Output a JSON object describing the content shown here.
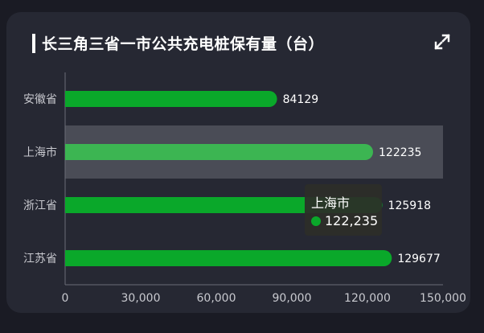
{
  "title": "长三角三省一市公共充电桩保有量（台）",
  "icons": {
    "expand": "expand-icon"
  },
  "colors": {
    "bar": "#0aa82a",
    "bar_highlight": "#3cb552",
    "hover_band": "#4a4c56",
    "axis_text": "#c8c9cf",
    "value_text": "#ffffff",
    "tooltip_dot": "#0aa82a"
  },
  "chart_data": {
    "type": "bar",
    "orientation": "horizontal",
    "categories": [
      "安徽省",
      "上海市",
      "浙江省",
      "江苏省"
    ],
    "values": [
      84129,
      122235,
      125918,
      129677
    ],
    "value_labels": [
      "84129",
      "122235",
      "125918",
      "129677"
    ],
    "xlim": [
      0,
      150000
    ],
    "x_ticks": [
      0,
      30000,
      60000,
      90000,
      120000,
      150000
    ],
    "x_tick_labels": [
      "0",
      "30,000",
      "60,000",
      "90,000",
      "120,000",
      "150,000"
    ],
    "highlighted_category": "上海市",
    "grid": false
  },
  "tooltip": {
    "title": "上海市",
    "value": "122,235"
  }
}
